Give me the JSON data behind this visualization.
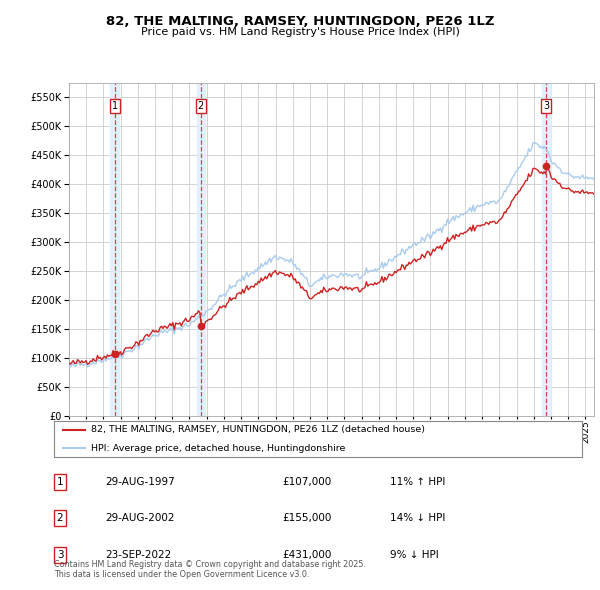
{
  "title_line1": "82, THE MALTING, RAMSEY, HUNTINGDON, PE26 1LZ",
  "title_line2": "Price paid vs. HM Land Registry's House Price Index (HPI)",
  "sales": [
    {
      "date_label": "29-AUG-1997",
      "date_num": 1997.66,
      "price": 107000,
      "num": "1",
      "pct": "11%",
      "dir": "↑"
    },
    {
      "date_label": "29-AUG-2002",
      "date_num": 2002.66,
      "price": 155000,
      "num": "2",
      "pct": "14%",
      "dir": "↓"
    },
    {
      "date_label": "23-SEP-2022",
      "date_num": 2022.73,
      "price": 431000,
      "num": "3",
      "pct": "9%",
      "dir": "↓"
    }
  ],
  "legend_red": "82, THE MALTING, RAMSEY, HUNTINGDON, PE26 1LZ (detached house)",
  "legend_blue": "HPI: Average price, detached house, Huntingdonshire",
  "footer": "Contains HM Land Registry data © Crown copyright and database right 2025.\nThis data is licensed under the Open Government Licence v3.0.",
  "ylim": [
    0,
    575000
  ],
  "yticks": [
    0,
    50000,
    100000,
    150000,
    200000,
    250000,
    300000,
    350000,
    400000,
    450000,
    500000,
    550000
  ],
  "xlim_start": 1995.0,
  "xlim_end": 2025.5,
  "background_color": "#ffffff",
  "grid_color": "#cccccc",
  "hpi_color": "#aaccee",
  "sale_color": "#cc2222",
  "vline_color": "#dd4444",
  "shade_color": "#ddeeff"
}
